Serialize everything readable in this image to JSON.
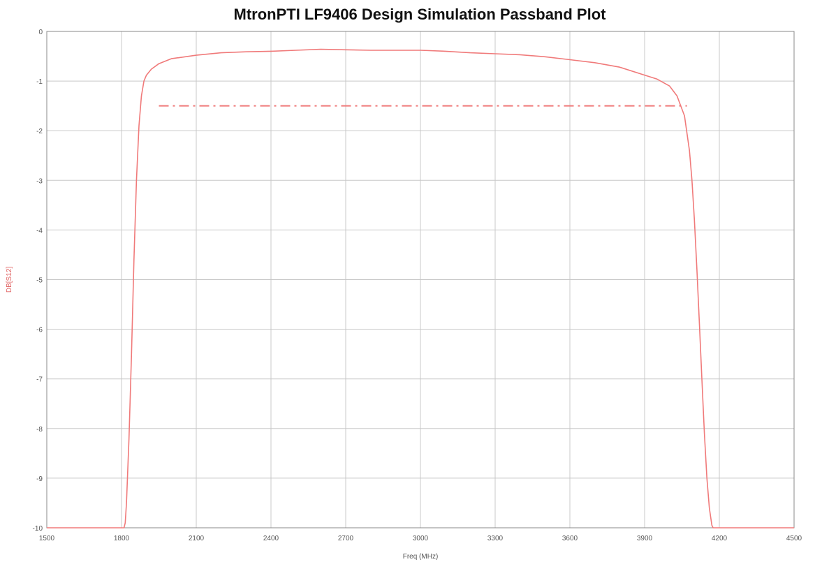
{
  "chart_data": {
    "type": "line",
    "title": "MtronPTI LF9406 Design Simulation Passband Plot",
    "xlabel": "Freq (MHz)",
    "ylabel": "DB[S12]",
    "xlim": [
      1500,
      4500
    ],
    "ylim": [
      -10,
      0
    ],
    "x_ticks": [
      "1500",
      "1800",
      "2100",
      "2400",
      "2700",
      "3000",
      "3300",
      "3600",
      "3900",
      "4200",
      "4500"
    ],
    "y_ticks": [
      "0",
      "-1",
      "-2",
      "-3",
      "-4",
      "-5",
      "-6",
      "-7",
      "-8",
      "-9",
      "-10"
    ],
    "grid": true,
    "colors": {
      "series": "#f07a7a",
      "ylabel": "#e06060",
      "grid": "#c8c8c8",
      "axis": "#888888"
    },
    "series": [
      {
        "style": "solid",
        "x": [
          1500,
          1810,
          1815,
          1820,
          1830,
          1840,
          1850,
          1860,
          1870,
          1880,
          1890,
          1900,
          1920,
          1950,
          2000,
          2100,
          2200,
          2300,
          2400,
          2500,
          2600,
          2700,
          2800,
          2900,
          3000,
          3100,
          3200,
          3300,
          3400,
          3500,
          3600,
          3700,
          3800,
          3900,
          3950,
          4000,
          4030,
          4060,
          4080,
          4090,
          4100,
          4110,
          4120,
          4130,
          4140,
          4150,
          4160,
          4170,
          4175,
          4180,
          4200,
          4500
        ],
        "y": [
          -10,
          -10,
          -9.9,
          -9.5,
          -8.2,
          -6.5,
          -4.6,
          -3.0,
          -1.9,
          -1.3,
          -1.0,
          -0.88,
          -0.76,
          -0.65,
          -0.55,
          -0.48,
          -0.43,
          -0.41,
          -0.4,
          -0.38,
          -0.36,
          -0.37,
          -0.38,
          -0.38,
          -0.38,
          -0.4,
          -0.43,
          -0.45,
          -0.47,
          -0.51,
          -0.57,
          -0.63,
          -0.72,
          -0.88,
          -0.96,
          -1.1,
          -1.3,
          -1.7,
          -2.4,
          -3.0,
          -3.8,
          -4.8,
          -5.9,
          -7.0,
          -8.1,
          -9.0,
          -9.6,
          -9.95,
          -10,
          -10,
          -10,
          -10
        ]
      },
      {
        "style": "dash-dot",
        "x": [
          1950,
          4070
        ],
        "y": [
          -1.5,
          -1.5
        ]
      }
    ]
  }
}
